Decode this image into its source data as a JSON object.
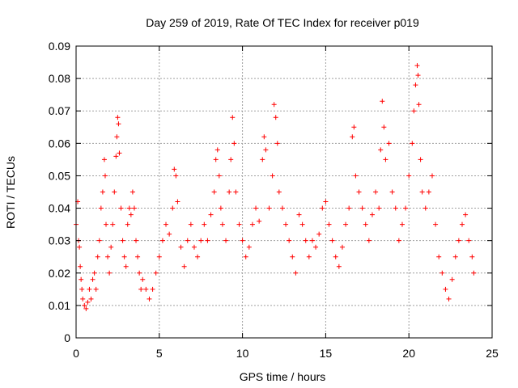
{
  "chart_data": {
    "type": "scatter",
    "title": "Day 259 of 2019, Rate Of TEC Index for receiver p019",
    "xlabel": "GPS time / hours",
    "ylabel": "ROTI / TECUs",
    "xlim": [
      0,
      25
    ],
    "ylim": [
      0,
      0.09
    ],
    "xticks": [
      0,
      5,
      10,
      15,
      20,
      25
    ],
    "yticks": [
      0,
      0.01,
      0.02,
      0.03,
      0.04,
      0.05,
      0.06,
      0.07,
      0.08,
      0.09
    ],
    "xtick_labels": [
      "0",
      "5",
      "10",
      "15",
      "20",
      "25"
    ],
    "ytick_labels": [
      "0",
      "0.01",
      "0.02",
      "0.03",
      "0.04",
      "0.05",
      "0.06",
      "0.07",
      "0.08",
      "0.09"
    ],
    "grid": true,
    "marker": "plus",
    "marker_color": "#ff0000",
    "series": [
      {
        "x": [
          0.0,
          0.1,
          0.15,
          0.2,
          0.25,
          0.3,
          0.35,
          0.4,
          0.5,
          0.6,
          0.7,
          0.8,
          0.9,
          1.0,
          1.1,
          1.2,
          1.3,
          1.4,
          1.5,
          1.6,
          1.7,
          1.75,
          1.8,
          1.9,
          2.0,
          2.1,
          2.2,
          2.3,
          2.4,
          2.45,
          2.5,
          2.55,
          2.6,
          2.7,
          2.8,
          2.9,
          3.0,
          3.1,
          3.2,
          3.3,
          3.4,
          3.5,
          3.6,
          3.7,
          3.8,
          3.9,
          4.0,
          4.2,
          4.4,
          4.6,
          4.8,
          5.0,
          5.2,
          5.4,
          5.6,
          5.8,
          5.9,
          6.0,
          6.1,
          6.3,
          6.5,
          6.7,
          6.9,
          7.1,
          7.3,
          7.5,
          7.7,
          7.9,
          8.1,
          8.3,
          8.4,
          8.5,
          8.6,
          8.7,
          8.8,
          9.0,
          9.2,
          9.3,
          9.4,
          9.5,
          9.6,
          9.8,
          10.0,
          10.2,
          10.4,
          10.6,
          10.8,
          11.0,
          11.2,
          11.3,
          11.4,
          11.6,
          11.8,
          11.9,
          12.0,
          12.1,
          12.2,
          12.4,
          12.6,
          12.8,
          13.0,
          13.2,
          13.4,
          13.6,
          13.8,
          14.0,
          14.2,
          14.4,
          14.6,
          14.8,
          15.0,
          15.2,
          15.4,
          15.6,
          15.8,
          16.0,
          16.2,
          16.4,
          16.6,
          16.7,
          16.8,
          17.0,
          17.2,
          17.4,
          17.6,
          17.8,
          18.0,
          18.2,
          18.3,
          18.4,
          18.5,
          18.6,
          18.8,
          19.0,
          19.2,
          19.4,
          19.6,
          19.8,
          20.0,
          20.2,
          20.3,
          20.4,
          20.5,
          20.55,
          20.6,
          20.7,
          20.8,
          21.0,
          21.2,
          21.4,
          21.6,
          21.8,
          22.0,
          22.2,
          22.4,
          22.6,
          22.8,
          23.0,
          23.2,
          23.4,
          23.6,
          23.8,
          23.9
        ],
        "y": [
          0.035,
          0.042,
          0.03,
          0.028,
          0.022,
          0.018,
          0.015,
          0.012,
          0.01,
          0.009,
          0.011,
          0.015,
          0.012,
          0.018,
          0.02,
          0.015,
          0.025,
          0.03,
          0.04,
          0.045,
          0.055,
          0.05,
          0.035,
          0.025,
          0.02,
          0.028,
          0.035,
          0.045,
          0.056,
          0.062,
          0.068,
          0.066,
          0.057,
          0.04,
          0.03,
          0.025,
          0.022,
          0.035,
          0.04,
          0.038,
          0.045,
          0.04,
          0.03,
          0.025,
          0.02,
          0.015,
          0.018,
          0.015,
          0.012,
          0.015,
          0.02,
          0.025,
          0.03,
          0.035,
          0.032,
          0.04,
          0.052,
          0.05,
          0.042,
          0.028,
          0.022,
          0.03,
          0.035,
          0.028,
          0.025,
          0.03,
          0.035,
          0.03,
          0.038,
          0.045,
          0.055,
          0.058,
          0.05,
          0.04,
          0.035,
          0.03,
          0.045,
          0.055,
          0.068,
          0.06,
          0.045,
          0.035,
          0.03,
          0.025,
          0.028,
          0.035,
          0.04,
          0.036,
          0.055,
          0.062,
          0.058,
          0.04,
          0.05,
          0.072,
          0.068,
          0.06,
          0.045,
          0.04,
          0.035,
          0.03,
          0.025,
          0.02,
          0.038,
          0.035,
          0.03,
          0.025,
          0.03,
          0.028,
          0.032,
          0.04,
          0.042,
          0.035,
          0.03,
          0.025,
          0.022,
          0.028,
          0.035,
          0.04,
          0.062,
          0.065,
          0.05,
          0.045,
          0.04,
          0.035,
          0.03,
          0.038,
          0.045,
          0.04,
          0.058,
          0.073,
          0.065,
          0.055,
          0.06,
          0.045,
          0.04,
          0.03,
          0.035,
          0.04,
          0.05,
          0.06,
          0.07,
          0.078,
          0.084,
          0.081,
          0.072,
          0.055,
          0.045,
          0.04,
          0.045,
          0.05,
          0.035,
          0.025,
          0.02,
          0.015,
          0.012,
          0.018,
          0.025,
          0.03,
          0.035,
          0.038,
          0.03,
          0.025,
          0.02
        ]
      }
    ]
  }
}
